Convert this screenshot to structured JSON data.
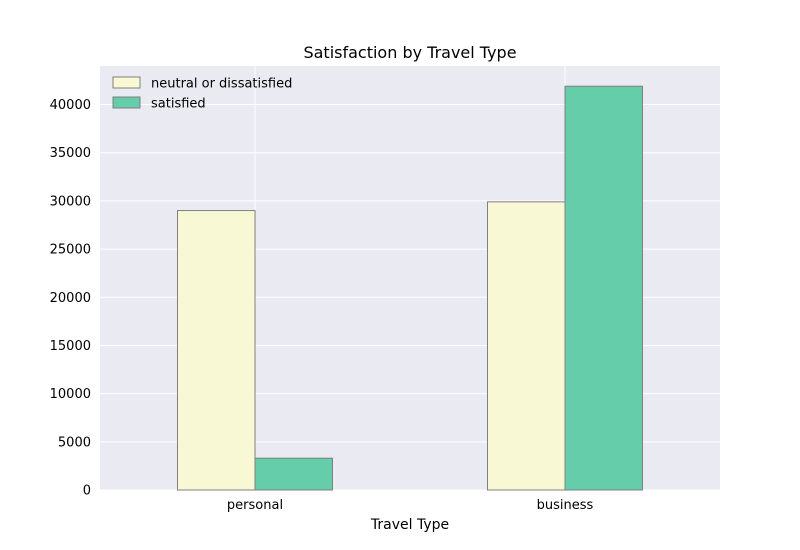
{
  "chart_data": {
    "type": "bar",
    "title": "Satisfaction by Travel Type",
    "xlabel": "Travel Type",
    "ylabel": "",
    "categories": [
      "personal",
      "business"
    ],
    "series": [
      {
        "name": "neutral or dissatisfied",
        "values": [
          29000,
          29900
        ],
        "color": "#f8f8d4"
      },
      {
        "name": "satisfied",
        "values": [
          3300,
          41900
        ],
        "color": "#66cdaa"
      }
    ],
    "ylim": [
      0,
      44000
    ],
    "yticks": [
      0,
      5000,
      10000,
      15000,
      20000,
      25000,
      30000,
      35000,
      40000
    ],
    "grid": true,
    "legend_position": "top-left",
    "colors": {
      "plot_background": "#eaeaf2",
      "grid": "#ffffff",
      "bar_edge": "#808080"
    }
  }
}
